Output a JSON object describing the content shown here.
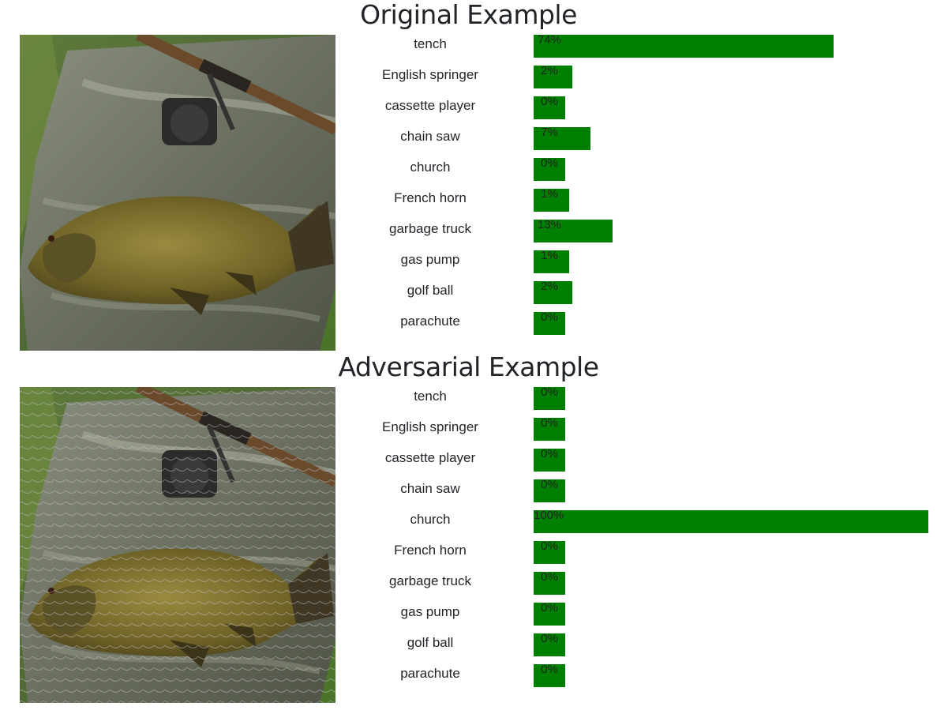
{
  "chart_data": [
    {
      "type": "bar",
      "title": "Original Example",
      "categories": [
        "tench",
        "English springer",
        "cassette player",
        "chain saw",
        "church",
        "French horn",
        "garbage truck",
        "gas pump",
        "golf ball",
        "parachute"
      ],
      "values": [
        74,
        2,
        0,
        7,
        0,
        1,
        13,
        1,
        2,
        0
      ],
      "value_labels": [
        "74%",
        "2%",
        "0%",
        "7%",
        "0%",
        "1%",
        "13%",
        "1%",
        "2%",
        "0%"
      ],
      "orientation": "horizontal",
      "xlim": [
        0,
        100
      ],
      "bar_color": "#008000",
      "grid": false
    },
    {
      "type": "bar",
      "title": "Adversarial Example",
      "categories": [
        "tench",
        "English springer",
        "cassette player",
        "chain saw",
        "church",
        "French horn",
        "garbage truck",
        "gas pump",
        "golf ball",
        "parachute"
      ],
      "values": [
        0,
        0,
        0,
        0,
        100,
        0,
        0,
        0,
        0,
        0
      ],
      "value_labels": [
        "0%",
        "0%",
        "0%",
        "0%",
        "100%",
        "0%",
        "0%",
        "0%",
        "0%",
        "0%"
      ],
      "orientation": "horizontal",
      "xlim": [
        0,
        100
      ],
      "bar_color": "#008000",
      "grid": false
    }
  ],
  "images": [
    {
      "subject": "fish-photo-icon"
    },
    {
      "subject": "fish-photo-adversarial-icon"
    }
  ]
}
